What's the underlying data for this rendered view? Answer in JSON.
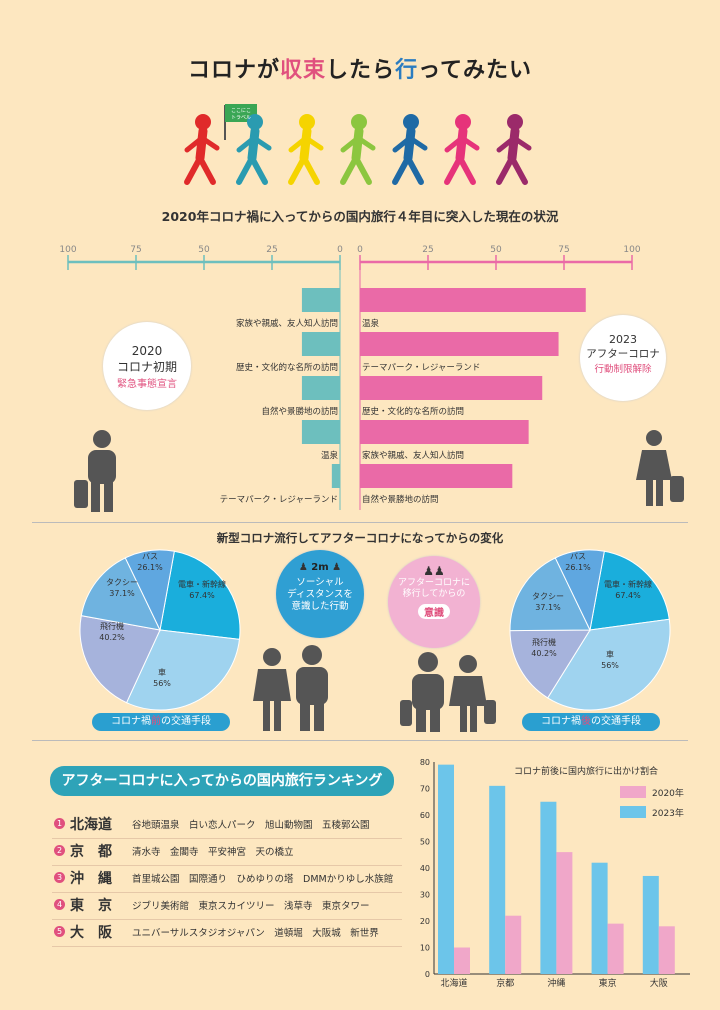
{
  "title": {
    "p1": "コロナが",
    "p2": "収束",
    "p3": "したら",
    "p4": "行",
    "p5": "ってみたい"
  },
  "flag_text": "ここにこ\nトラベル",
  "subtitle": "2020年コロナ禍に入ってからの国内旅行４年目に突入した現在の状況",
  "colors": {
    "teal": "#6dbfbe",
    "pink": "#ea6aa7",
    "bg": "#fde7c0",
    "blue_bar": "#6cc5ea",
    "pink_bar": "#f0a7c9"
  },
  "butterfly": {
    "left_ticks": [
      "100",
      "75",
      "50",
      "25",
      "0"
    ],
    "right_ticks": [
      "0",
      "25",
      "50",
      "75",
      "100"
    ],
    "left_values": [
      14,
      14,
      14,
      14,
      3
    ],
    "left_labels": [
      "家族や親戚、友人知人訪問",
      "歴史・文化的な名所の訪問",
      "自然や景勝地の訪問",
      "温泉",
      "テーマパーク・レジャーランド"
    ],
    "right_values": [
      83,
      73,
      67,
      62,
      56
    ],
    "right_labels": [
      "温泉",
      "テーマパーク・レジャーランド",
      "歴史・文化的な名所の訪問",
      "家族や親戚、友人知人訪問",
      "自然や景勝地の訪問"
    ]
  },
  "bubble_left": {
    "year": "2020",
    "l2": "コロナ初期",
    "l3": "緊急事態宣言"
  },
  "bubble_right": {
    "year": "2023",
    "l2": "アフターコロナ",
    "l3": "行動制限解除"
  },
  "section2_title": "新型コロナ流行してアフターコロナになってからの変化",
  "pie_before": {
    "label_pre": "コロナ禍",
    "label_em": "前",
    "label_post": "の交通手段",
    "slices": [
      {
        "name": "電車・新幹線",
        "value": "67.4%"
      },
      {
        "name": "車",
        "value": "56%"
      },
      {
        "name": "飛行機",
        "value": "40.2%"
      },
      {
        "name": "タクシー",
        "value": "37.1%"
      },
      {
        "name": "バス",
        "value": "26.1%"
      }
    ]
  },
  "pie_after": {
    "label_pre": "コロナ禍",
    "label_em": "後",
    "label_post": "の交通手段",
    "slices": [
      {
        "name": "電車・新幹線",
        "value": "67.4%"
      },
      {
        "name": "車",
        "value": "56%"
      },
      {
        "name": "飛行機",
        "value": "40.2%"
      },
      {
        "name": "タクシー",
        "value": "37.1%"
      },
      {
        "name": "バス",
        "value": "26.1%"
      }
    ]
  },
  "social_bubble": {
    "dist": "2m",
    "text": "ソーシャル\nディスタンスを\n意識した行動"
  },
  "after_bubble": {
    "text": "アフターコロナに\n移行してからの",
    "tag": "意識"
  },
  "ranking": {
    "header": "アフターコロナに入ってからの国内旅行ランキング",
    "rows": [
      {
        "num": "1",
        "pref": "北海道",
        "spots": "谷地頭温泉　白い恋人パーク　旭山動物園　五稜郭公園"
      },
      {
        "num": "2",
        "pref": "京　都",
        "spots": "清水寺　金閣寺　平安神宮　天の橋立"
      },
      {
        "num": "3",
        "pref": "沖　縄",
        "spots": "首里城公園　国際通り　ひめゆりの塔　DMMかりゆし水族館"
      },
      {
        "num": "4",
        "pref": "東　京",
        "spots": "ジブリ美術館　東京スカイツリー　浅草寺　東京タワー"
      },
      {
        "num": "5",
        "pref": "大　阪",
        "spots": "ユニバーサルスタジオジャパン　道頓堀　大阪城　新世界"
      }
    ]
  },
  "chart_data": {
    "type": "bar",
    "title": "コロナ前後に国内旅行に出かけ割合",
    "categories": [
      "北海道",
      "京都",
      "沖縄",
      "東京",
      "大阪"
    ],
    "series": [
      {
        "name": "2023年",
        "values": [
          79,
          71,
          65,
          42,
          37
        ]
      },
      {
        "name": "2020年",
        "values": [
          10,
          22,
          46,
          19,
          18
        ]
      }
    ],
    "ylim": [
      0,
      80
    ],
    "yticks": [
      "0",
      "10",
      "20",
      "30",
      "40",
      "50",
      "60",
      "70",
      "80"
    ],
    "legend": [
      "2020年",
      "2023年"
    ]
  }
}
